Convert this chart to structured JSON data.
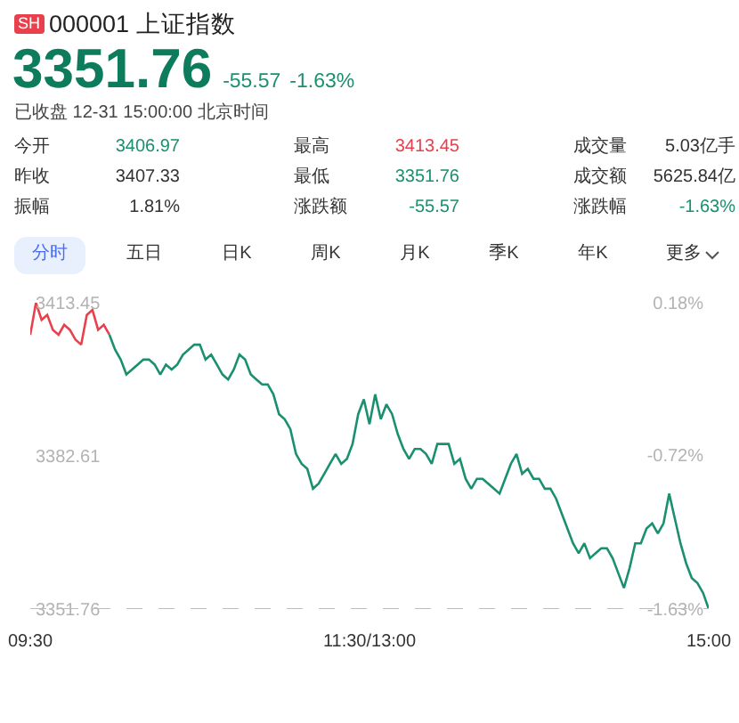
{
  "chart_data": [
    {
      "type": "other",
      "title": "000001 上证指数",
      "annotations": [
        "SH",
        "3351.76",
        "-55.57",
        "-1.63%",
        "已收盘 12-31 15:00:00 北京时间",
        "今开",
        "3406.97",
        "最高",
        "3413.45",
        "成交量",
        "5.03亿手",
        "昨收",
        "3407.33",
        "最低",
        "3351.76",
        "成交额",
        "5625.84亿",
        "振幅",
        "1.81%",
        "涨跌额",
        "-55.57",
        "涨跌幅",
        "-1.63%",
        "分时",
        "五日",
        "日K",
        "周K",
        "月K",
        "季K",
        "年K",
        "更多"
      ]
    },
    {
      "type": "line",
      "categories": [
        "09:30",
        null,
        null,
        null,
        null,
        null,
        null,
        null,
        null,
        null,
        null,
        null,
        null,
        null,
        null,
        null,
        null,
        null,
        null,
        null,
        null,
        null,
        null,
        null,
        null,
        null,
        null,
        null,
        null,
        null,
        null,
        null,
        null,
        null,
        null,
        null,
        null,
        null,
        null,
        null,
        null,
        null,
        null,
        null,
        null,
        null,
        null,
        null,
        null,
        null,
        null,
        null,
        null,
        null,
        null,
        null,
        null,
        null,
        null,
        null,
        "11:30/13:00",
        null,
        null,
        null,
        null,
        null,
        null,
        null,
        null,
        null,
        null,
        null,
        null,
        null,
        null,
        null,
        null,
        null,
        null,
        null,
        null,
        null,
        null,
        null,
        null,
        null,
        null,
        null,
        null,
        null,
        null,
        null,
        null,
        null,
        null,
        null,
        null,
        null,
        null,
        null,
        null,
        null,
        null,
        null,
        null,
        null,
        null,
        null,
        null,
        null,
        null,
        null,
        null,
        null,
        null,
        null,
        null,
        null,
        null,
        null,
        "15:00"
      ],
      "ylim": [
        3351.76,
        3413.45
      ],
      "yticks": [
        3351.76,
        3382.61,
        3413.45
      ],
      "y2lim": [
        -1.63,
        0.18
      ],
      "y2ticks": [
        {
          "value": -1.63,
          "label": "-1.63%"
        },
        {
          "value": -0.72,
          "label": "-0.72%"
        },
        {
          "value": 0.18,
          "label": "0.18%"
        }
      ],
      "ref_lines": [
        {
          "axis": "y",
          "value": 3351.76,
          "color": "#f4a3a3",
          "line_style": "dashed"
        }
      ],
      "series": [
        {
          "color": "#e8414d",
          "values": [
            3406.97,
            3413.45,
            3410,
            3411,
            3408,
            3407,
            3409,
            3408,
            3406,
            3405,
            3411,
            3412,
            3408,
            3409,
            3407,
            null,
            null,
            null,
            null,
            null,
            null,
            null,
            null,
            null,
            null,
            null,
            null,
            null,
            null,
            null,
            null,
            null,
            null,
            null,
            null,
            null,
            null,
            null,
            null,
            null,
            null,
            null,
            null,
            null,
            null,
            null,
            null,
            null,
            null,
            null,
            null,
            null,
            null,
            null,
            null,
            null,
            null,
            null,
            null,
            null,
            null,
            null,
            null,
            null,
            null,
            null,
            null,
            null,
            null,
            null,
            null,
            null,
            null,
            null,
            null,
            null,
            null,
            null,
            null,
            null,
            null,
            null,
            null,
            null,
            null,
            null,
            null,
            null,
            null,
            null,
            null,
            null,
            null,
            null,
            null,
            null,
            null,
            null,
            null,
            null,
            null,
            null,
            null,
            null,
            null,
            null,
            null,
            null,
            null,
            null,
            null,
            null,
            null,
            null,
            null,
            null,
            null,
            null,
            null,
            null,
            null
          ]
        },
        {
          "color": "#1a9070",
          "values": [
            null,
            null,
            null,
            null,
            null,
            null,
            null,
            null,
            null,
            null,
            null,
            null,
            null,
            null,
            3407,
            3404,
            3402,
            3399,
            3400,
            3401,
            3402,
            3402,
            3401,
            3399,
            3401,
            3400,
            3401,
            3403,
            3404,
            3405,
            3405,
            3402,
            3403,
            3401,
            3399,
            3398,
            3400,
            3403,
            3402,
            3399,
            3398,
            3397,
            3397,
            3395,
            3391,
            3390,
            3388,
            3383,
            3381,
            3380,
            3376,
            3377,
            3379,
            3381,
            3383,
            3381,
            3382,
            3385,
            3391,
            3394,
            3389,
            3395,
            3390,
            3393,
            3391,
            3387,
            3384,
            3382,
            3384,
            3384,
            3383,
            3381,
            3385,
            3385,
            3385,
            3381,
            3382,
            3378,
            3376,
            3378,
            3378,
            3377,
            3376,
            3375,
            3378,
            3381,
            3383,
            3379,
            3380,
            3378,
            3378,
            3376,
            3376,
            3374,
            3371,
            3368,
            3365,
            3363,
            3365,
            3362,
            3363,
            3364,
            3364,
            3362,
            3359,
            3356,
            3360,
            3365,
            3365,
            3368,
            3369,
            3367,
            3369,
            3375,
            3370,
            3365,
            3361,
            3358,
            3357,
            3355,
            3351.76
          ]
        }
      ]
    }
  ]
}
